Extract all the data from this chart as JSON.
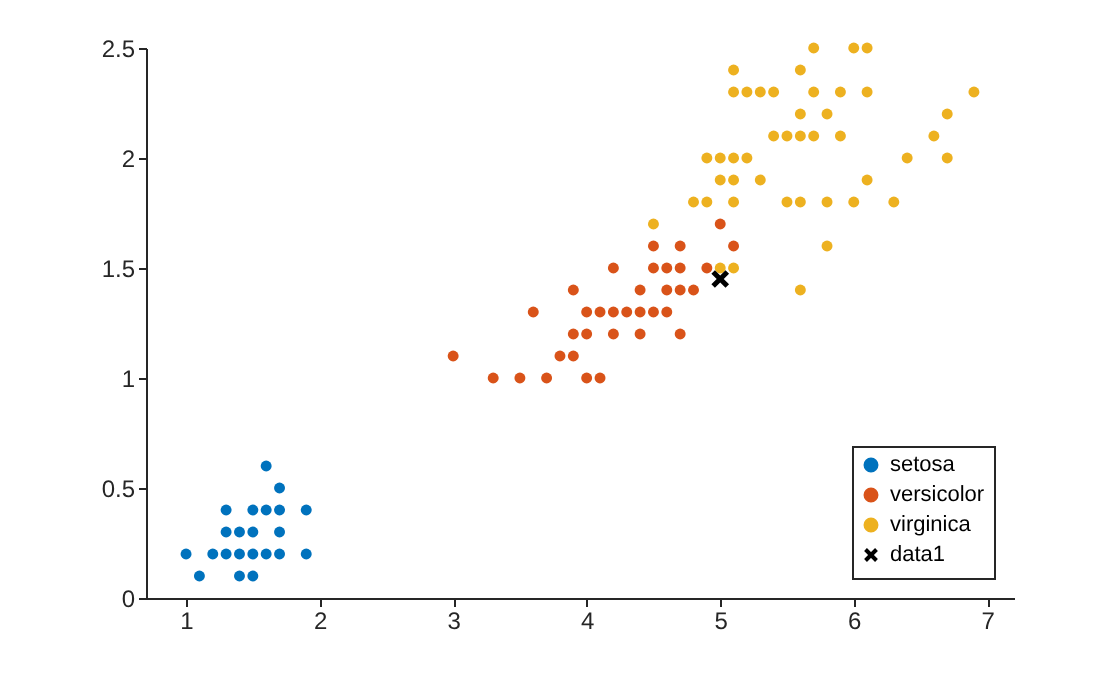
{
  "chart_data": {
    "type": "scatter",
    "xlim": [
      0.7,
      7.2
    ],
    "ylim": [
      0,
      2.5
    ],
    "xticks": [
      1,
      2,
      3,
      4,
      5,
      6,
      7
    ],
    "yticks": [
      0,
      0.5,
      1,
      1.5,
      2,
      2.5
    ],
    "grid": false,
    "legend": "bottom right",
    "series": [
      {
        "name": "setosa",
        "color": "#0072bd",
        "marker": "circle",
        "x": [
          1.0,
          1.2,
          1.3,
          1.4,
          1.5,
          1.6,
          1.7,
          1.9,
          1.1,
          1.4,
          1.5,
          1.3,
          1.4,
          1.5,
          1.7,
          1.3,
          1.5,
          1.6,
          1.7,
          1.9,
          1.7,
          1.6
        ],
        "values": [
          0.2,
          0.2,
          0.2,
          0.2,
          0.2,
          0.2,
          0.2,
          0.2,
          0.1,
          0.1,
          0.1,
          0.3,
          0.3,
          0.3,
          0.3,
          0.4,
          0.4,
          0.4,
          0.4,
          0.4,
          0.5,
          0.6
        ]
      },
      {
        "name": "versicolor",
        "color": "#d95319",
        "marker": "circle",
        "x": [
          3.3,
          3.5,
          3.7,
          4.0,
          4.1,
          3.0,
          3.8,
          3.9,
          3.9,
          4.0,
          4.2,
          4.4,
          4.7,
          3.6,
          4.0,
          4.1,
          4.2,
          4.3,
          4.4,
          4.5,
          4.6,
          3.9,
          4.4,
          4.6,
          4.7,
          4.8,
          4.2,
          4.5,
          4.6,
          4.7,
          4.9,
          4.5,
          4.7,
          5.1,
          5.0
        ],
        "values": [
          1.0,
          1.0,
          1.0,
          1.0,
          1.0,
          1.1,
          1.1,
          1.1,
          1.2,
          1.2,
          1.2,
          1.2,
          1.2,
          1.3,
          1.3,
          1.3,
          1.3,
          1.3,
          1.3,
          1.3,
          1.3,
          1.4,
          1.4,
          1.4,
          1.4,
          1.4,
          1.5,
          1.5,
          1.5,
          1.5,
          1.5,
          1.6,
          1.6,
          1.6,
          1.7
        ]
      },
      {
        "name": "virginica",
        "color": "#edb120",
        "marker": "circle",
        "x": [
          5.6,
          5.0,
          5.1,
          5.8,
          4.5,
          4.8,
          4.9,
          5.1,
          5.5,
          5.6,
          5.8,
          6.0,
          6.3,
          5.0,
          5.1,
          5.3,
          6.1,
          4.9,
          5.0,
          5.1,
          5.2,
          6.4,
          6.7,
          5.4,
          5.5,
          5.6,
          5.7,
          5.9,
          6.6,
          5.6,
          5.8,
          6.7,
          5.1,
          5.2,
          5.3,
          5.4,
          5.7,
          5.9,
          6.1,
          6.9,
          5.1,
          5.6,
          5.7,
          6.0,
          6.1
        ],
        "values": [
          1.4,
          1.5,
          1.5,
          1.6,
          1.7,
          1.8,
          1.8,
          1.8,
          1.8,
          1.8,
          1.8,
          1.8,
          1.8,
          1.9,
          1.9,
          1.9,
          1.9,
          2.0,
          2.0,
          2.0,
          2.0,
          2.0,
          2.0,
          2.1,
          2.1,
          2.1,
          2.1,
          2.1,
          2.1,
          2.2,
          2.2,
          2.2,
          2.3,
          2.3,
          2.3,
          2.3,
          2.3,
          2.3,
          2.3,
          2.3,
          2.4,
          2.4,
          2.5,
          2.5,
          2.5
        ]
      },
      {
        "name": "data1",
        "type": "line",
        "color": "#000000",
        "marker": "cross",
        "x": [
          5.0
        ],
        "values": [
          1.45
        ]
      }
    ]
  }
}
